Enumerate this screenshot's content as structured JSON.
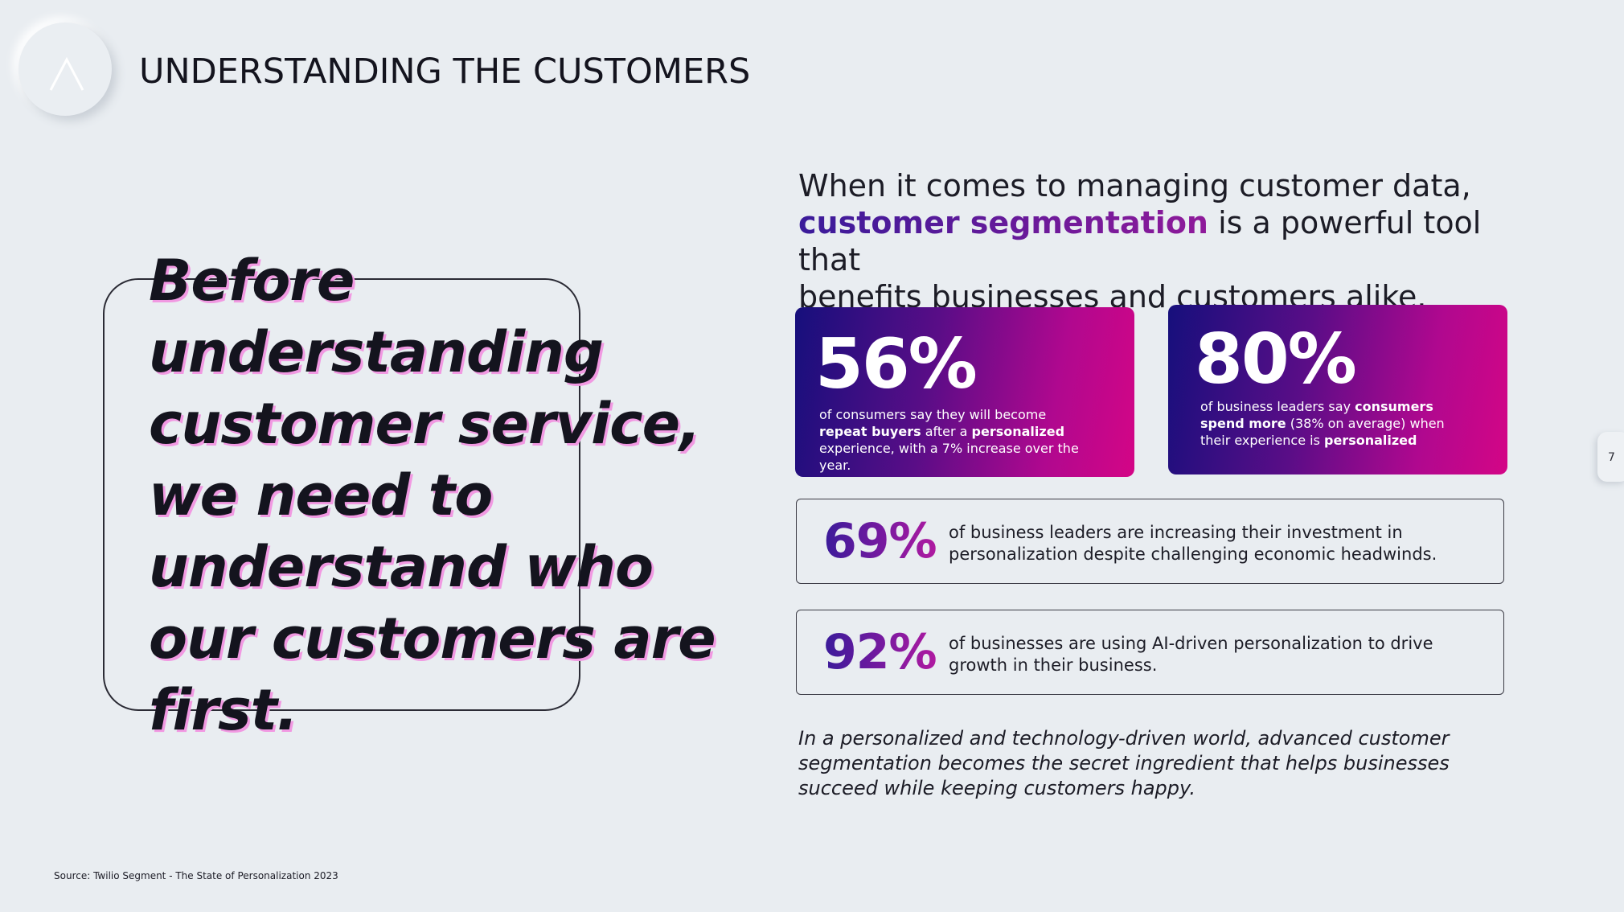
{
  "header": {
    "title": "UNDERSTANDING THE CUSTOMERS"
  },
  "quote": {
    "text": "Before understanding customer service, we need to understand who our customers are first."
  },
  "intro": {
    "line1": "When it comes to managing customer data,",
    "highlight": "customer segmentation",
    "line2_rest": " is a powerful tool that",
    "line3": "benefits businesses and customers alike."
  },
  "cards": [
    {
      "value": "56%",
      "t1": "of consumers say they will become ",
      "b1": "repeat buyers",
      "t2": " after a ",
      "b2": "personalized",
      "t3": " experience, with a 7% increase over the year."
    },
    {
      "value": "80%",
      "t1": "of business leaders say ",
      "b1": "consumers spend more",
      "t2": " (38% on average) when their experience is ",
      "b2": "personalized",
      "t3": ""
    }
  ],
  "stats": [
    {
      "value": "69%",
      "text": "of business leaders are increasing their investment in personalization despite challenging economic headwinds."
    },
    {
      "value": "92%",
      "text": "of businesses are using AI-driven personalization to drive growth in their business."
    }
  ],
  "closing": "In a personalized and technology-driven world, advanced customer segmentation becomes the secret ingredient that helps businesses succeed while keeping customers happy.",
  "source": "Source: Twilio Segment - The State of Personalization 2023",
  "page_number": "7",
  "colors": {
    "background": "#e9edf1",
    "gradient_start": "#160f7c",
    "gradient_end": "#d40586",
    "quote_shadow": "#f199e2"
  },
  "icons": {
    "logo": "logo-icon"
  }
}
